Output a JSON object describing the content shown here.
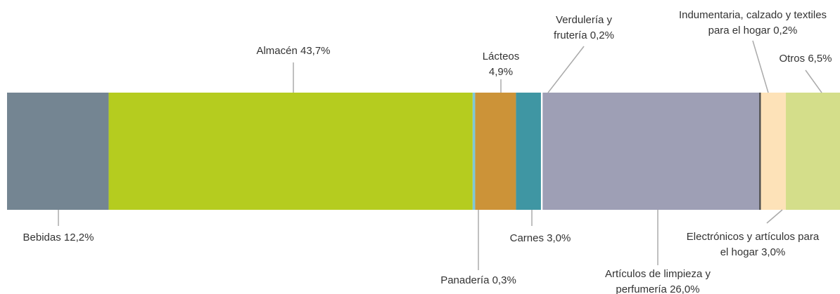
{
  "chart_data": {
    "type": "stacked-bar",
    "categories": [
      "Bebidas",
      "Almacén",
      "Panadería",
      "Lácteos",
      "Carnes",
      "Verdulería y frutería",
      "Artículos de limpieza y perfumería",
      "Indumentaria, calzado y textiles para el hogar",
      "Electrónicos y artículos para el hogar",
      "Otros"
    ],
    "values": [
      12.2,
      43.7,
      0.3,
      4.9,
      3.0,
      0.2,
      26.0,
      0.2,
      3.0,
      6.5
    ],
    "value_labels": [
      "12,2%",
      "43,7%",
      "0,3%",
      "4,9%",
      "3,0%",
      "0,2%",
      "26,0%",
      "0,2%",
      "3,0%",
      "6,5%"
    ],
    "colors": [
      "#748592",
      "#b5cc1f",
      "#7fc8d6",
      "#cc9338",
      "#3f96a3",
      "#ffffff",
      "#9e9fb5",
      "#4a4a4a",
      "#fde2b8",
      "#d4de8a"
    ]
  }
}
